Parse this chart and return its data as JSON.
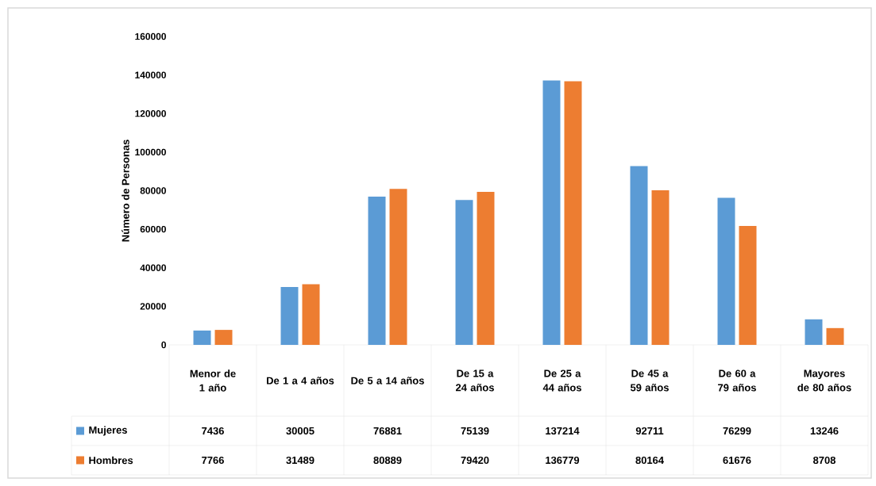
{
  "chart_data": {
    "type": "bar",
    "ylabel": "Número de Personas",
    "categories": [
      "Menor de 1 año",
      "De 1 a 4 años",
      "De 5 a 14 años",
      "De 15 a 24 años",
      "De 25 a 44 años",
      "De 45 a 59 años",
      "De 60 a 79 años",
      "Mayores de 80 años"
    ],
    "series": [
      {
        "name": "Mujeres",
        "color": "#5b9bd5",
        "values": [
          7436,
          30005,
          76881,
          75139,
          137214,
          92711,
          76299,
          13246
        ]
      },
      {
        "name": "Hombres",
        "color": "#ed7d31",
        "values": [
          7766,
          31489,
          80889,
          79420,
          136779,
          80164,
          61676,
          8708
        ]
      }
    ],
    "ylim": [
      0,
      160000
    ],
    "yticks": [
      0,
      20000,
      40000,
      60000,
      80000,
      100000,
      120000,
      140000,
      160000
    ],
    "data_labels": true,
    "legend": "bottom",
    "grid": false
  }
}
